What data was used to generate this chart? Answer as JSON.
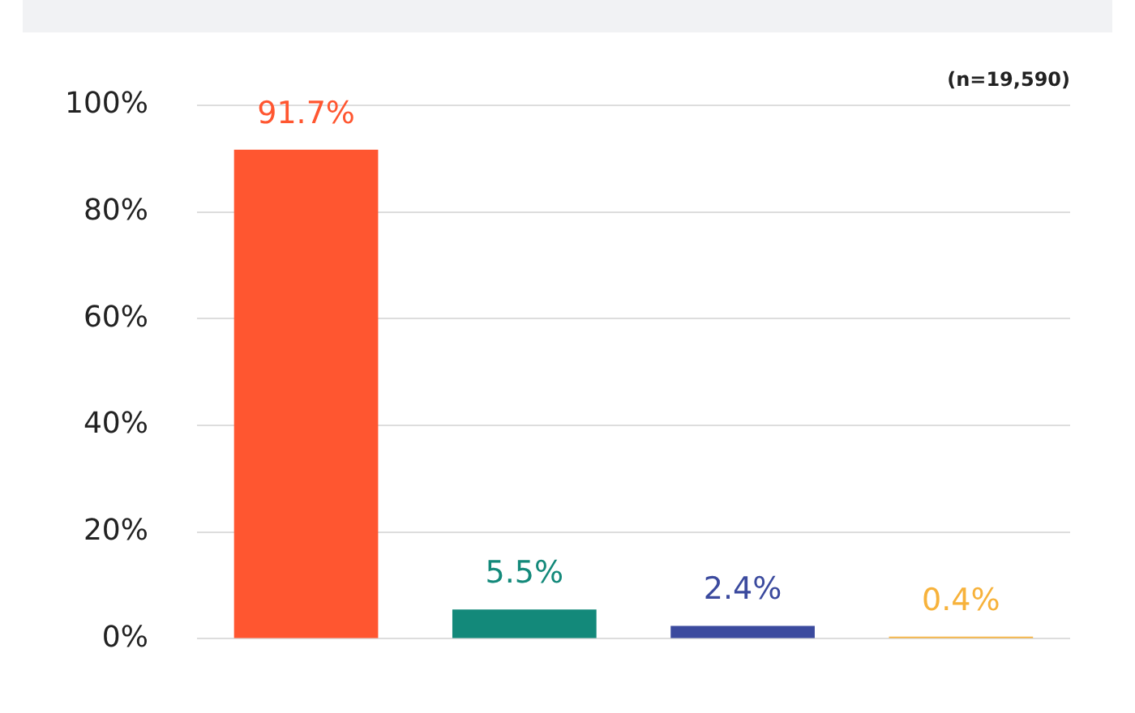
{
  "chart_data": {
    "type": "bar",
    "categories": [
      null,
      null,
      null,
      null
    ],
    "values": [
      91.7,
      5.5,
      2.4,
      0.4
    ],
    "value_labels": [
      "91.7%",
      "5.5%",
      "2.4%",
      "0.4%"
    ],
    "colors": [
      "#ff5630",
      "#13897a",
      "#3b4a9e",
      "#f7b23b"
    ],
    "ylim": [
      0,
      100
    ],
    "yticks": [
      {
        "value": 0,
        "label": "0%"
      },
      {
        "value": 20,
        "label": "20%"
      },
      {
        "value": 40,
        "label": "40%"
      },
      {
        "value": 60,
        "label": "60%"
      },
      {
        "value": 80,
        "label": "80%"
      },
      {
        "value": 100,
        "label": "100%"
      }
    ],
    "grid": "y",
    "legend": false,
    "annotations": [
      "(n=19,590)"
    ]
  }
}
